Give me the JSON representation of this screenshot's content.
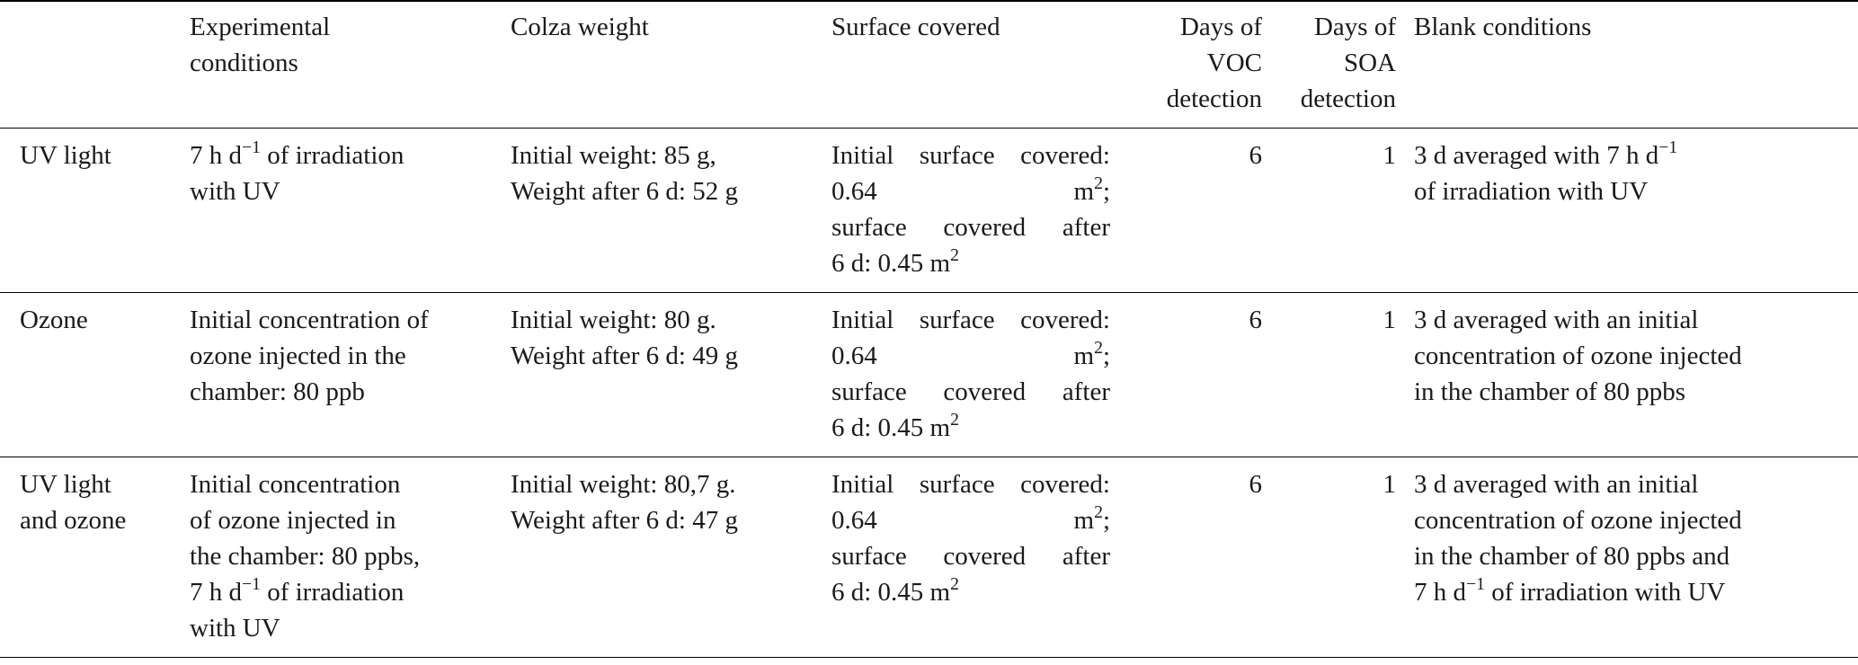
{
  "table": {
    "headers": [
      "",
      "Experimental conditions",
      "Colza weight",
      "Surface covered",
      "Days of VOC detection",
      "Days of SOA detection",
      "Blank conditions"
    ],
    "header_lines": {
      "exp": [
        "Experimental",
        "conditions"
      ],
      "voc": [
        "Days of",
        "VOC",
        "detection"
      ],
      "soa": [
        "Days of",
        "SOA",
        "detection"
      ]
    },
    "rows": [
      {
        "label_lines": [
          "UV light"
        ],
        "exp": [
          {
            "pre": "7 h d",
            "sup": "−1",
            "post": " of irradiation"
          },
          {
            "pre": "with UV"
          }
        ],
        "weight": [
          {
            "pre": "Initial weight: 85 g,"
          },
          {
            "pre": "Weight after 6 d: 52 g"
          }
        ],
        "surface": [
          {
            "pre": "Initial surface covered:"
          },
          {
            "pre": "0.64 m",
            "sup": "2",
            "post": ";"
          },
          {
            "pre": "surface covered after"
          },
          {
            "pre": "6 d: 0.45 m",
            "sup": "2"
          }
        ],
        "voc": "6",
        "soa": "1",
        "blank": [
          {
            "pre": "3 d averaged with 7 h d",
            "sup": "−1"
          },
          {
            "pre": "of irradiation with UV"
          }
        ]
      },
      {
        "label_lines": [
          "Ozone"
        ],
        "exp": [
          {
            "pre": "Initial concentration of"
          },
          {
            "pre": "ozone injected in the"
          },
          {
            "pre": "chamber: 80 ppb"
          }
        ],
        "weight": [
          {
            "pre": "Initial weight: 80 g."
          },
          {
            "pre": "Weight after 6 d: 49 g"
          }
        ],
        "surface": [
          {
            "pre": "Initial surface covered:"
          },
          {
            "pre": "0.64 m",
            "sup": "2",
            "post": ";"
          },
          {
            "pre": "surface covered after"
          },
          {
            "pre": "6 d: 0.45 m",
            "sup": "2"
          }
        ],
        "voc": "6",
        "soa": "1",
        "blank": [
          {
            "pre": "3 d averaged with an initial"
          },
          {
            "pre": "concentration of ozone injected"
          },
          {
            "pre": "in the chamber of 80 ppbs"
          }
        ]
      },
      {
        "label_lines": [
          "UV light",
          "and ozone"
        ],
        "exp": [
          {
            "pre": "Initial concentration"
          },
          {
            "pre": "of ozone injected in"
          },
          {
            "pre": "the chamber: 80 ppbs,"
          },
          {
            "pre": "7 h d",
            "sup": "−1",
            "post": " of irradiation"
          },
          {
            "pre": "with UV"
          }
        ],
        "weight": [
          {
            "pre": "Initial weight: 80,7 g."
          },
          {
            "pre": "Weight after 6 d: 47 g"
          }
        ],
        "surface": [
          {
            "pre": "Initial surface covered:"
          },
          {
            "pre": "0.64 m",
            "sup": "2",
            "post": ";"
          },
          {
            "pre": "surface covered after"
          },
          {
            "pre": "6 d: 0.45 m",
            "sup": "2"
          }
        ],
        "voc": "6",
        "soa": "1",
        "blank": [
          {
            "pre": "3 d averaged with an initial"
          },
          {
            "pre": "concentration of ozone injected"
          },
          {
            "pre": "in the chamber of 80 ppbs and"
          },
          {
            "pre": "7 h d",
            "sup": "−1",
            "post": " of irradiation with UV"
          }
        ]
      }
    ]
  }
}
